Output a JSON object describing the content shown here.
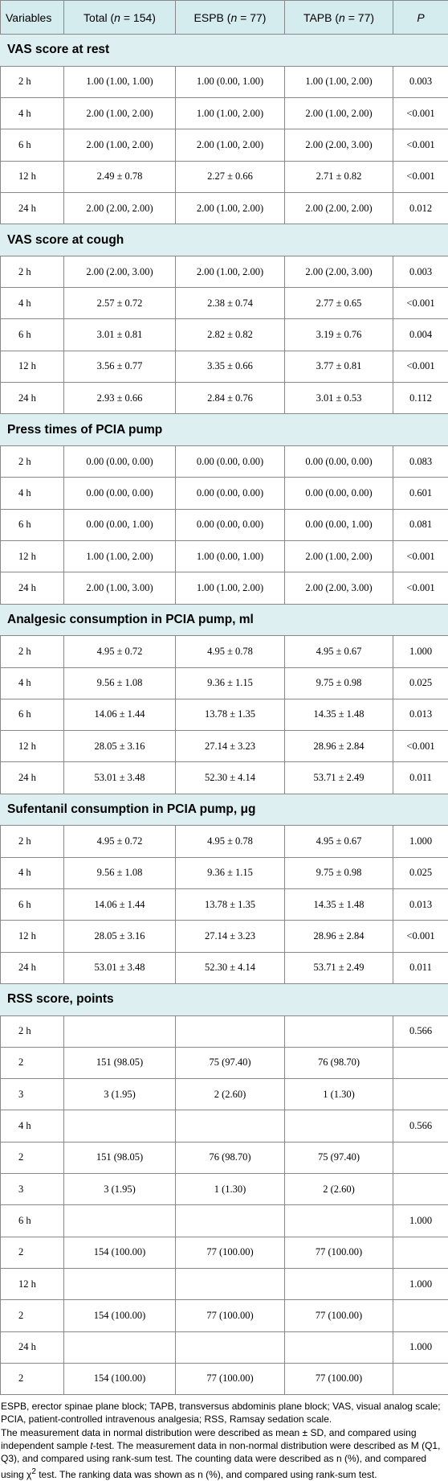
{
  "header": {
    "variables": "Variables",
    "total": "Total (",
    "total_n": "n",
    "total_val": " = 154)",
    "espb": "ESPB (",
    "espb_n": "n",
    "espb_val": " = 77)",
    "tapb": "TAPB (",
    "tapb_n": "n",
    "tapb_val": " = 77)",
    "p": "P"
  },
  "sections": [
    {
      "title": "VAS score at rest",
      "rows": [
        [
          "2 h",
          "1.00 (1.00, 1.00)",
          "1.00 (0.00, 1.00)",
          "1.00 (1.00, 2.00)",
          "0.003"
        ],
        [
          "4 h",
          "2.00 (1.00, 2.00)",
          "1.00 (1.00, 2.00)",
          "2.00 (1.00, 2.00)",
          "<0.001"
        ],
        [
          "6 h",
          "2.00 (1.00, 2.00)",
          "2.00 (1.00, 2.00)",
          "2.00 (2.00, 3.00)",
          "<0.001"
        ],
        [
          "12 h",
          "2.49 ± 0.78",
          "2.27 ± 0.66",
          "2.71 ± 0.82",
          "<0.001"
        ],
        [
          "24 h",
          "2.00 (2.00, 2.00)",
          "2.00 (1.00, 2.00)",
          "2.00 (2.00, 2.00)",
          "0.012"
        ]
      ]
    },
    {
      "title": "VAS score at cough",
      "rows": [
        [
          "2 h",
          "2.00 (2.00, 3.00)",
          "2.00 (1.00, 2.00)",
          "2.00 (2.00, 3.00)",
          "0.003"
        ],
        [
          "4 h",
          "2.57 ± 0.72",
          "2.38 ± 0.74",
          "2.77 ± 0.65",
          "<0.001"
        ],
        [
          "6 h",
          "3.01 ± 0.81",
          "2.82 ± 0.82",
          "3.19 ± 0.76",
          "0.004"
        ],
        [
          "12 h",
          "3.56 ± 0.77",
          "3.35 ± 0.66",
          "3.77 ± 0.81",
          "<0.001"
        ],
        [
          "24 h",
          "2.93 ± 0.66",
          "2.84 ± 0.76",
          "3.01 ± 0.53",
          "0.112"
        ]
      ]
    },
    {
      "title": "Press times of PCIA pump",
      "rows": [
        [
          "2 h",
          "0.00 (0.00, 0.00)",
          "0.00 (0.00, 0.00)",
          "0.00 (0.00, 0.00)",
          "0.083"
        ],
        [
          "4 h",
          "0.00 (0.00, 0.00)",
          "0.00 (0.00, 0.00)",
          "0.00 (0.00, 0.00)",
          "0.601"
        ],
        [
          "6 h",
          "0.00 (0.00, 1.00)",
          "0.00 (0.00, 0.00)",
          "0.00 (0.00, 1.00)",
          "0.081"
        ],
        [
          "12 h",
          "1.00 (1.00, 2.00)",
          "1.00 (0.00, 1.00)",
          "2.00 (1.00, 2.00)",
          "<0.001"
        ],
        [
          "24 h",
          "2.00 (1.00, 3.00)",
          "1.00 (1.00, 2.00)",
          "2.00 (2.00, 3.00)",
          "<0.001"
        ]
      ]
    },
    {
      "title": "Analgesic consumption in PCIA pump, ml",
      "rows": [
        [
          "2 h",
          "4.95 ± 0.72",
          "4.95 ± 0.78",
          "4.95 ± 0.67",
          "1.000"
        ],
        [
          "4 h",
          "9.56 ± 1.08",
          "9.36 ± 1.15",
          "9.75 ± 0.98",
          "0.025"
        ],
        [
          "6 h",
          "14.06 ± 1.44",
          "13.78 ± 1.35",
          "14.35 ± 1.48",
          "0.013"
        ],
        [
          "12 h",
          "28.05 ± 3.16",
          "27.14 ± 3.23",
          "28.96 ± 2.84",
          "<0.001"
        ],
        [
          "24 h",
          "53.01 ± 3.48",
          "52.30 ± 4.14",
          "53.71 ± 2.49",
          "0.011"
        ]
      ]
    },
    {
      "title": "Sufentanil consumption in PCIA pump, μg",
      "rows": [
        [
          "2 h",
          "4.95 ± 0.72",
          "4.95 ± 0.78",
          "4.95 ± 0.67",
          "1.000"
        ],
        [
          "4 h",
          "9.56 ± 1.08",
          "9.36 ± 1.15",
          "9.75 ± 0.98",
          "0.025"
        ],
        [
          "6 h",
          "14.06 ± 1.44",
          "13.78 ± 1.35",
          "14.35 ± 1.48",
          "0.013"
        ],
        [
          "12 h",
          "28.05 ± 3.16",
          "27.14 ± 3.23",
          "28.96 ± 2.84",
          "<0.001"
        ],
        [
          "24 h",
          "53.01 ± 3.48",
          "52.30 ± 4.14",
          "53.71 ± 2.49",
          "0.011"
        ]
      ]
    },
    {
      "title": "RSS score, points",
      "rows": [
        [
          "2 h",
          "",
          "",
          "",
          "0.566"
        ],
        [
          "2",
          "151 (98.05)",
          "75 (97.40)",
          "76 (98.70)",
          ""
        ],
        [
          "3",
          "3 (1.95)",
          "2 (2.60)",
          "1 (1.30)",
          ""
        ],
        [
          "4 h",
          "",
          "",
          "",
          "0.566"
        ],
        [
          "2",
          "151 (98.05)",
          "76 (98.70)",
          "75 (97.40)",
          ""
        ],
        [
          "3",
          "3 (1.95)",
          "1 (1.30)",
          "2 (2.60)",
          ""
        ],
        [
          "6 h",
          "",
          "",
          "",
          "1.000"
        ],
        [
          "2",
          "154 (100.00)",
          "77 (100.00)",
          "77 (100.00)",
          ""
        ],
        [
          "12 h",
          "",
          "",
          "",
          "1.000"
        ],
        [
          "2",
          "154 (100.00)",
          "77 (100.00)",
          "77 (100.00)",
          ""
        ],
        [
          "24 h",
          "",
          "",
          "",
          "1.000"
        ],
        [
          "2",
          "154 (100.00)",
          "77 (100.00)",
          "77 (100.00)",
          ""
        ]
      ]
    }
  ],
  "footnotes": {
    "abbrev": "ESPB, erector spinae plane block; TAPB, transversus abdominis plane block; VAS, visual analog scale; PCIA, patient-controlled intravenous analgesia; RSS, Ramsay sedation scale.",
    "m1": "The measurement data in normal distribution were described as mean ± SD, and compared using independent sample ",
    "m1_t": "t",
    "m2": "-test. The measurement data in non-normal distribution were described as M (Q1, Q3), and compared using rank-sum test. The counting data were described as n (%), and compared using χ",
    "m2_sup": "2",
    "m3": " test. The ranking data was shown as n (%), and compared using rank-sum test."
  }
}
